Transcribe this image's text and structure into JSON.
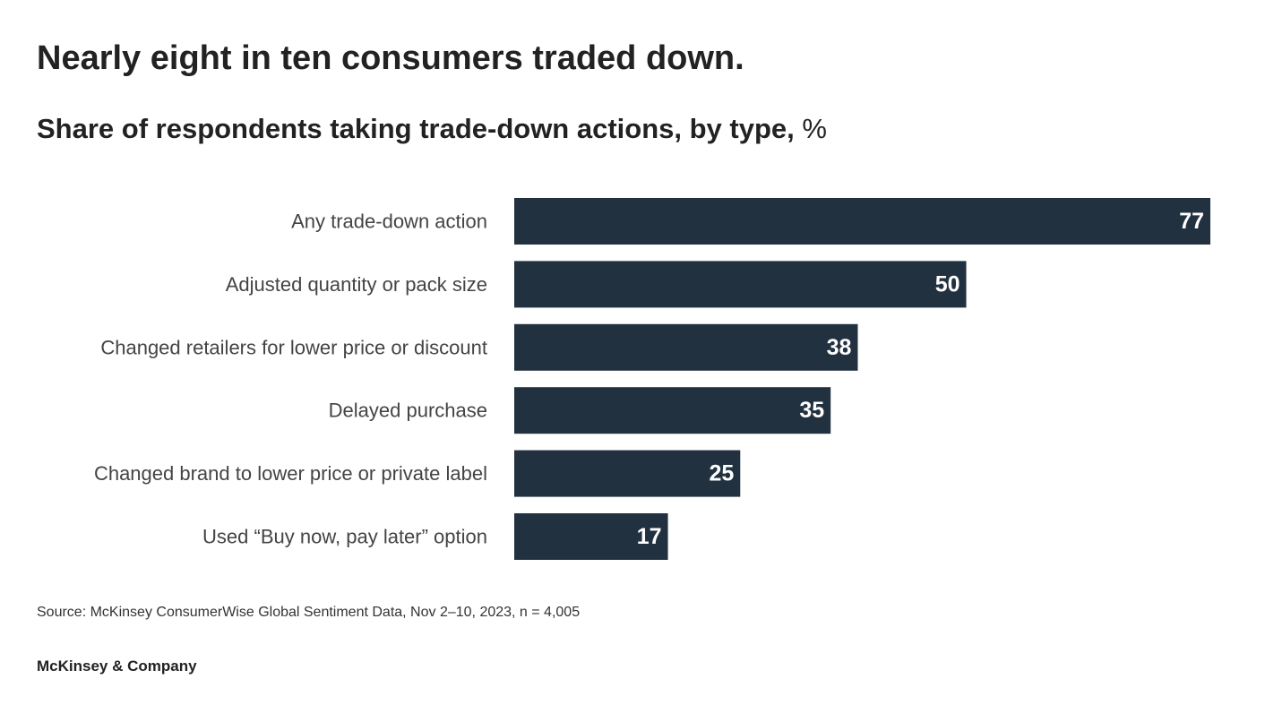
{
  "header": {
    "title": "Nearly eight in ten consumers traded down.",
    "subtitle": "Share of respondents taking trade-down actions, by type,",
    "subtitle_unit": "%"
  },
  "chart_data": {
    "type": "bar",
    "orientation": "horizontal",
    "categories": [
      "Any trade-down action",
      "Adjusted quantity or pack size",
      "Changed retailers for lower price or discount",
      "Delayed purchase",
      "Changed brand to lower price or private label",
      "Used “Buy now, pay later” option"
    ],
    "values": [
      77,
      50,
      38,
      35,
      25,
      17
    ],
    "title": "Nearly eight in ten consumers traded down.",
    "subtitle": "Share of respondents taking trade-down actions, by type, %",
    "xlim": [
      0,
      77
    ],
    "grid": false,
    "legend": "none",
    "data_labels": "inside-end",
    "bar_color": "#22313f",
    "label_color": "#ffffff"
  },
  "footer": {
    "source": "Source: McKinsey ConsumerWise Global Sentiment Data, Nov 2–10, 2023, n = 4,005",
    "logo_text": "McKinsey & Company"
  }
}
